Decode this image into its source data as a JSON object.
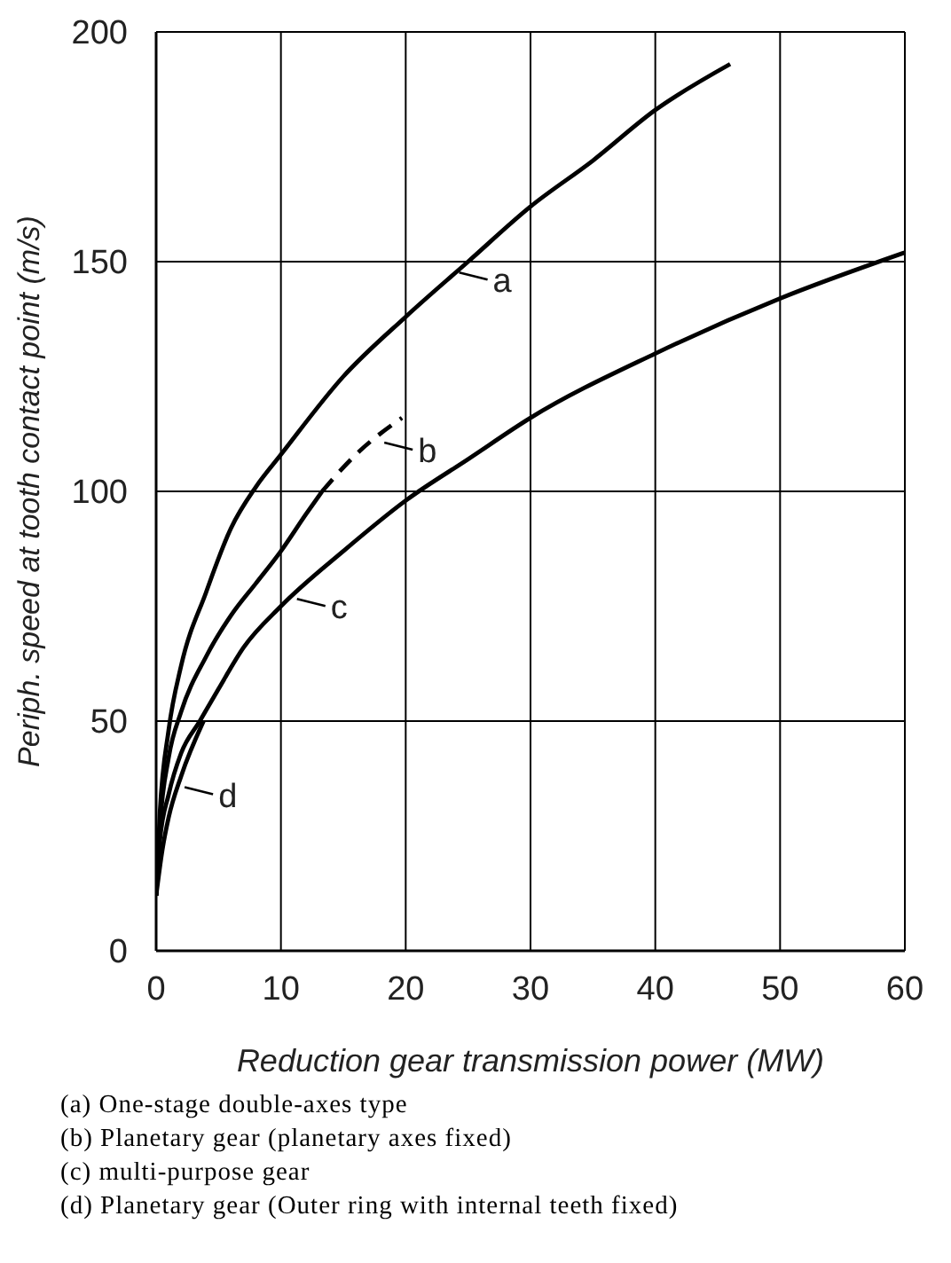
{
  "chart_data": {
    "type": "line",
    "xlabel": "Reduction gear transmission power (MW)",
    "ylabel": "Periph. speed at tooth contact point (m/s)",
    "xlim": [
      0,
      60
    ],
    "xticks": [
      0,
      10,
      20,
      30,
      40,
      50,
      60
    ],
    "ylim": [
      0,
      200
    ],
    "yticks": [
      0,
      50,
      100,
      150,
      200
    ],
    "grid": true,
    "series": [
      {
        "color": "#000000",
        "line_style": "solid",
        "x": [
          0,
          0.3,
          1,
          2,
          4,
          6,
          8,
          10,
          15,
          20,
          25,
          30,
          35,
          40,
          46
        ],
        "values": [
          12,
          30,
          48,
          62,
          78,
          92,
          101,
          108,
          125,
          138,
          150,
          162,
          172,
          183,
          193
        ]
      },
      {
        "color": "#000000",
        "line_style": "solid",
        "x": [
          0,
          0.3,
          1,
          2,
          4,
          6,
          8,
          10,
          12,
          13.3
        ],
        "values": [
          12,
          27,
          42,
          52,
          64,
          73,
          80,
          87,
          95,
          100
        ]
      },
      {
        "color": "#000000",
        "line_style": "dashed",
        "x": [
          13.3,
          16,
          19.7
        ],
        "values": [
          100,
          108,
          116
        ]
      },
      {
        "color": "#000000",
        "line_style": "solid",
        "x": [
          0,
          0.3,
          1,
          2,
          3.5,
          5,
          7,
          10,
          15,
          20,
          25,
          30,
          40,
          50,
          60
        ],
        "values": [
          12,
          24,
          34,
          43,
          50,
          57,
          66,
          75,
          87,
          98,
          107,
          116,
          130,
          142,
          152
        ]
      },
      {
        "color": "#000000",
        "line_style": "solid",
        "x": [
          0,
          0.5,
          1,
          2,
          3.8
        ],
        "values": [
          12,
          22,
          29,
          38,
          50
        ]
      }
    ],
    "annotations": [
      {
        "text": "a",
        "x": 24,
        "y": 148
      },
      {
        "text": "b",
        "x": 18,
        "y": 111
      },
      {
        "text": "c",
        "x": 11,
        "y": 77
      },
      {
        "text": "d",
        "x": 2,
        "y": 36
      },
      "(a)  One-stage double-axes type",
      "(b)  Planetary gear (planetary axes fixed)",
      "(c)  multi-purpose gear",
      "(d)  Planetary gear (Outer ring with internal teeth fixed)"
    ]
  }
}
